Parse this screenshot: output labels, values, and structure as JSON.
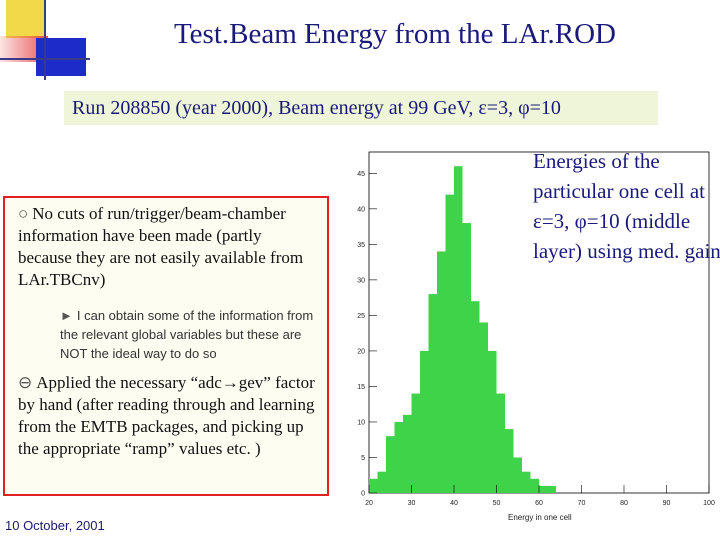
{
  "slide": {
    "title": "Test.Beam Energy from the LAr.ROD",
    "subtitle": "Run 208850 (year 2000), Beam energy at 99 GeV, ε=3, φ=10",
    "footer": "10 October, 2001",
    "bullets": {
      "b1": "No cuts of run/trigger/beam-chamber information have been made (partly because they are not easily available from LAr.TBCnv)",
      "b2": "I can obtain some of the information from the relevant global variables but these are NOT the ideal way to do so",
      "b3_before": "Applied the necessary “adc",
      "b3_arrow": "→",
      "b3_after": "gev” factor by hand (after reading through and learning from the EMTB packages, and picking up the appropriate “ramp” values etc. )"
    },
    "annotation": "Energies of the particular one cell at ε=3, φ=10 (middle layer) using med. gain",
    "colors": {
      "title": "#1a1a7a",
      "subtitle_bg": "#eef5d8",
      "box_border": "#e02020",
      "hist_fill": "#3fd34a"
    }
  },
  "chart_data": {
    "type": "bar",
    "title": "",
    "xlabel": "Energy in one cell",
    "ylabel": "",
    "xlim": [
      20,
      100
    ],
    "ylim": [
      0,
      48
    ],
    "xticks": [
      20,
      30,
      40,
      50,
      60,
      70,
      80,
      90,
      100
    ],
    "yticks": [
      0,
      5,
      10,
      15,
      20,
      25,
      30,
      35,
      40,
      45
    ],
    "bin_width": 2,
    "bins_start": [
      20,
      22,
      24,
      26,
      28,
      30,
      32,
      34,
      36,
      38,
      40,
      42,
      44,
      46,
      48,
      50,
      52,
      54,
      56,
      58,
      60,
      62,
      64,
      66,
      68,
      70,
      72,
      74,
      76,
      78,
      80,
      82,
      84,
      86,
      88,
      90,
      92,
      94,
      96,
      98
    ],
    "values": [
      2,
      3,
      8,
      10,
      11,
      14,
      20,
      28,
      34,
      42,
      46,
      38,
      27,
      24,
      20,
      14,
      9,
      5,
      3,
      2,
      1,
      1,
      0,
      0,
      0,
      0,
      0,
      0,
      0,
      0,
      0,
      0,
      0,
      0,
      0,
      0,
      0,
      0,
      0,
      0
    ],
    "grid": false,
    "legend": "none"
  }
}
